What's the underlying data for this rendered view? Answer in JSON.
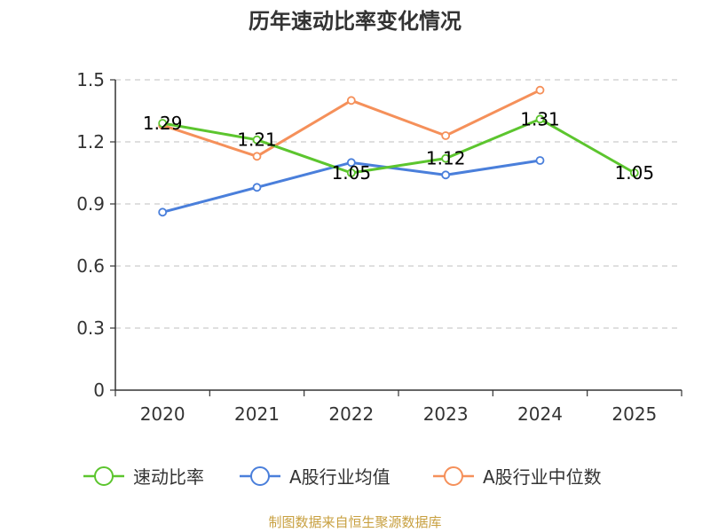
{
  "chart_data": {
    "type": "line",
    "title": "历年速动比率变化情况",
    "categories": [
      "2020",
      "2021",
      "2022",
      "2023",
      "2024",
      "2025"
    ],
    "y_ticks": [
      "0",
      "0.3",
      "0.6",
      "0.9",
      "1.2",
      "1.5"
    ],
    "ylim": [
      0,
      1.5
    ],
    "grid": true,
    "legend_position": "bottom",
    "series": [
      {
        "name": "速动比率",
        "color": "#5cc52e",
        "values": [
          1.29,
          1.21,
          1.05,
          1.12,
          1.31,
          1.05
        ],
        "labels": [
          "1.29",
          "1.21",
          "1.05",
          "1.12",
          "1.31",
          "1.05"
        ],
        "show_labels": true
      },
      {
        "name": "A股行业均值",
        "color": "#4a7fdb",
        "values": [
          0.86,
          0.98,
          1.1,
          1.04,
          1.11,
          null
        ],
        "show_labels": false
      },
      {
        "name": "A股行业中位数",
        "color": "#f5905a",
        "values": [
          1.28,
          1.13,
          1.4,
          1.23,
          1.45,
          null
        ],
        "show_labels": false
      }
    ],
    "source": "制图数据来自恒生聚源数据库"
  }
}
